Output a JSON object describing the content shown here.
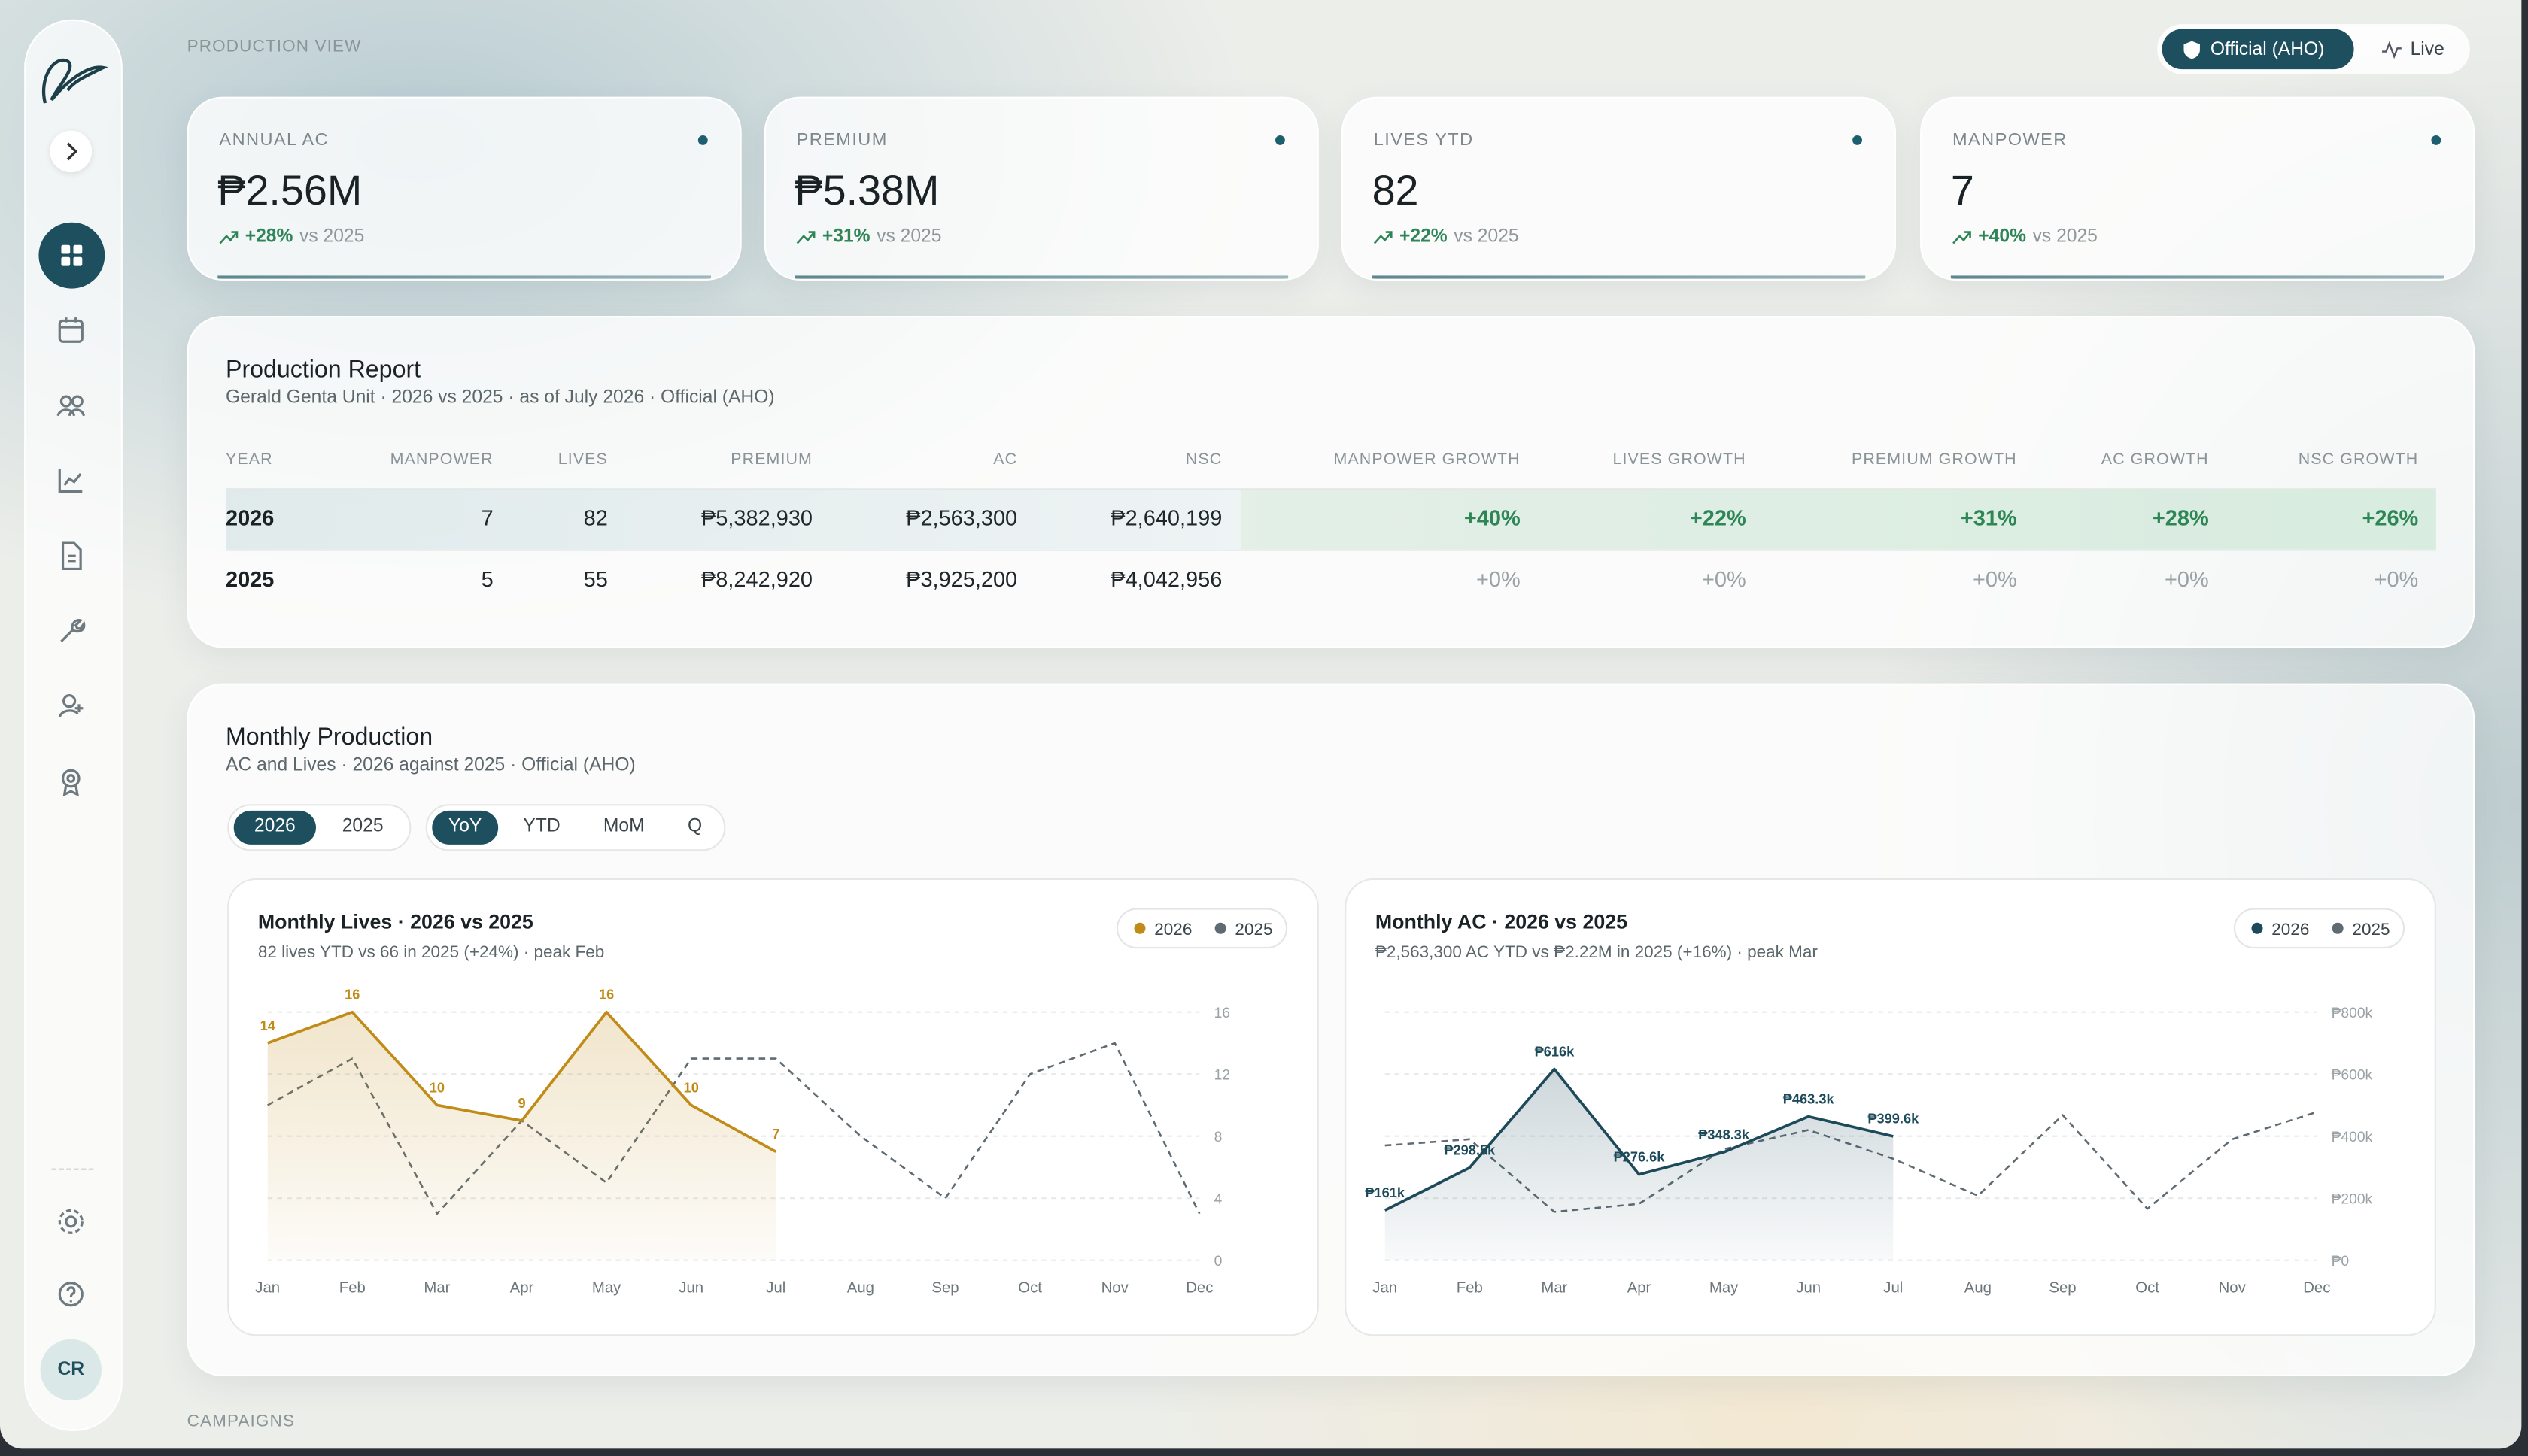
{
  "sidebar": {
    "avatar": "CR"
  },
  "header": {
    "section": "PRODUCTION VIEW",
    "modes": [
      "Official (AHO)",
      "Live"
    ]
  },
  "kpis": [
    {
      "label": "ANNUAL AC",
      "value": "₱2.56M",
      "delta": "+28%",
      "compare": "vs 2025"
    },
    {
      "label": "PREMIUM",
      "value": "₱5.38M",
      "delta": "+31%",
      "compare": "vs 2025"
    },
    {
      "label": "LIVES YTD",
      "value": "82",
      "delta": "+22%",
      "compare": "vs 2025"
    },
    {
      "label": "MANPOWER",
      "value": "7",
      "delta": "+40%",
      "compare": "vs 2025"
    }
  ],
  "report": {
    "title": "Production Report",
    "subtitle": "Gerald Genta Unit · 2026 vs 2025 · as of July 2026 · Official (AHO)",
    "columns": [
      "YEAR",
      "MANPOWER",
      "LIVES",
      "PREMIUM",
      "AC",
      "NSC",
      "MANPOWER GROWTH",
      "LIVES GROWTH",
      "PREMIUM GROWTH",
      "AC GROWTH",
      "NSC GROWTH"
    ],
    "rows": [
      [
        "2026",
        "7",
        "82",
        "₱5,382,930",
        "₱2,563,300",
        "₱2,640,199",
        "+40%",
        "+22%",
        "+31%",
        "+28%",
        "+26%"
      ],
      [
        "2025",
        "5",
        "55",
        "₱8,242,920",
        "₱3,925,200",
        "₱4,042,956",
        "+0%",
        "+0%",
        "+0%",
        "+0%",
        "+0%"
      ]
    ]
  },
  "monthly": {
    "title": "Monthly Production",
    "subtitle": "AC and Lives · 2026 against 2025 · Official (AHO)",
    "years": [
      "2026",
      "2025"
    ],
    "views": [
      "YoY",
      "YTD",
      "MoM",
      "Q"
    ]
  },
  "chart_data": [
    {
      "type": "line",
      "title": "Monthly Lives · 2026 vs 2025",
      "subtitle": "82 lives YTD vs 66 in 2025 (+24%) · peak Feb",
      "categories": [
        "Jan",
        "Feb",
        "Mar",
        "Apr",
        "May",
        "Jun",
        "Jul",
        "Aug",
        "Sep",
        "Oct",
        "Nov",
        "Dec"
      ],
      "series": [
        {
          "name": "2026",
          "color": "#c08b17",
          "values": [
            14,
            16,
            10,
            9,
            16,
            10,
            7,
            null,
            null,
            null,
            null,
            null
          ]
        },
        {
          "name": "2025",
          "color": "#5f6b73",
          "values": [
            10,
            13,
            3,
            9,
            5,
            13,
            13,
            8,
            4,
            12,
            14,
            3
          ]
        }
      ],
      "ylim": [
        0,
        16
      ],
      "yticks": [
        0,
        4,
        8,
        12,
        16
      ],
      "grid": true
    },
    {
      "type": "line",
      "title": "Monthly AC · 2026 vs 2025",
      "subtitle": "₱2,563,300 AC YTD vs ₱2.22M in 2025 (+16%) · peak Mar",
      "categories": [
        "Jan",
        "Feb",
        "Mar",
        "Apr",
        "May",
        "Jun",
        "Jul",
        "Aug",
        "Sep",
        "Oct",
        "Nov",
        "Dec"
      ],
      "series": [
        {
          "name": "2026",
          "color": "#1d4a5a",
          "values": [
            161000,
            298500,
            616000,
            276600,
            348300,
            463300,
            399600,
            null,
            null,
            null,
            null,
            null
          ],
          "value_labels": [
            "₱161k",
            "₱298.5k",
            "₱616k",
            "₱276.6k",
            "₱348.3k",
            "₱463.3k",
            "₱399.6k",
            null,
            null,
            null,
            null,
            null
          ]
        },
        {
          "name": "2025",
          "color": "#5f6b73",
          "values": [
            370000,
            390000,
            156000,
            182000,
            358000,
            420000,
            327000,
            208000,
            468000,
            166000,
            390000,
            478000
          ]
        }
      ],
      "ylim": [
        0,
        800000
      ],
      "yticks": [
        {
          "value": 0,
          "label": "₱0"
        },
        {
          "value": 200000,
          "label": "₱200k"
        },
        {
          "value": 400000,
          "label": "₱400k"
        },
        {
          "value": 600000,
          "label": "₱600k"
        },
        {
          "value": 800000,
          "label": "₱800k"
        }
      ],
      "grid": true
    }
  ],
  "footer": {
    "section": "CAMPAIGNS"
  }
}
